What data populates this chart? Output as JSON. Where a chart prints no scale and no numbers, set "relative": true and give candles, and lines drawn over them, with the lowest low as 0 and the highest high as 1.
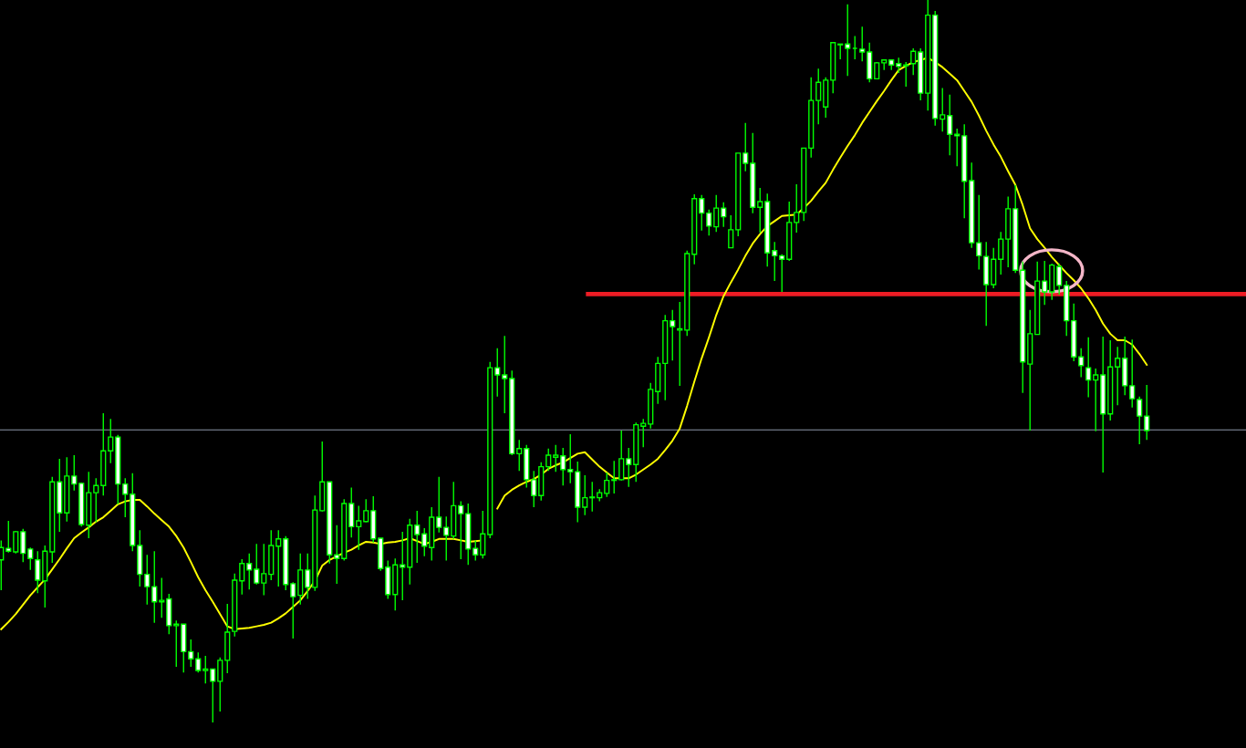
{
  "chart_data": {
    "type": "candlestick",
    "relative": true,
    "color": "#00ff00",
    "legend": false,
    "categories": [
      null,
      null,
      null,
      null,
      null,
      null,
      null,
      null,
      null,
      null,
      null,
      null,
      null,
      null,
      null,
      null,
      null,
      null,
      null,
      null,
      null,
      null,
      null,
      null,
      null,
      null,
      null,
      null,
      null,
      null,
      null,
      null,
      null,
      null,
      null,
      null,
      null,
      null,
      null,
      null,
      null,
      null,
      null,
      null,
      null,
      null,
      null,
      null,
      null,
      null,
      null,
      null,
      null,
      null,
      null,
      null,
      null,
      null,
      null,
      null,
      null,
      null,
      null,
      null,
      null,
      null,
      null,
      null,
      null,
      null,
      null,
      null,
      null,
      null,
      null,
      null,
      null,
      null,
      null,
      null,
      null,
      null,
      null,
      null,
      null,
      null,
      null,
      null,
      null,
      null,
      null,
      null,
      null,
      null,
      null,
      null,
      null,
      null,
      null,
      null,
      null,
      null,
      null,
      null,
      null,
      null,
      null,
      null,
      null,
      null,
      null,
      null,
      null,
      null,
      null,
      null,
      null,
      null,
      null,
      null,
      null,
      null,
      null,
      null,
      null,
      null,
      null,
      null,
      null,
      null,
      null,
      null,
      null,
      null,
      null,
      null,
      null,
      null,
      null,
      null,
      null,
      null,
      null,
      null,
      null,
      null,
      null,
      null,
      null,
      null,
      null,
      null,
      null,
      null,
      null,
      null,
      null,
      null
    ],
    "ohlc": [
      [
        0.225,
        0.252,
        0.183,
        0.242
      ],
      [
        0.241,
        0.279,
        0.235,
        0.237
      ],
      [
        0.236,
        0.265,
        0.234,
        0.264
      ],
      [
        0.264,
        0.268,
        0.222,
        0.234
      ],
      [
        0.24,
        0.242,
        0.211,
        0.227
      ],
      [
        0.225,
        0.237,
        0.179,
        0.197
      ],
      [
        0.196,
        0.245,
        0.159,
        0.237
      ],
      [
        0.236,
        0.34,
        0.221,
        0.333
      ],
      [
        0.333,
        0.365,
        0.264,
        0.29
      ],
      [
        0.29,
        0.367,
        0.278,
        0.341
      ],
      [
        0.341,
        0.37,
        0.321,
        0.33
      ],
      [
        0.331,
        0.332,
        0.271,
        0.274
      ],
      [
        0.273,
        0.347,
        0.255,
        0.318
      ],
      [
        0.318,
        0.338,
        0.277,
        0.328
      ],
      [
        0.328,
        0.428,
        0.314,
        0.376
      ],
      [
        0.376,
        0.42,
        0.359,
        0.395
      ],
      [
        0.395,
        0.398,
        0.302,
        0.33
      ],
      [
        0.33,
        0.338,
        0.284,
        0.316
      ],
      [
        0.316,
        0.345,
        0.237,
        0.245
      ],
      [
        0.245,
        0.266,
        0.188,
        0.205
      ],
      [
        0.205,
        0.232,
        0.163,
        0.188
      ],
      [
        0.188,
        0.237,
        0.138,
        0.167
      ],
      [
        0.167,
        0.2,
        0.145,
        0.169
      ],
      [
        0.171,
        0.178,
        0.122,
        0.134
      ],
      [
        0.134,
        0.141,
        0.077,
        0.136
      ],
      [
        0.136,
        0.136,
        0.069,
        0.098
      ],
      [
        0.098,
        0.115,
        0.077,
        0.088
      ],
      [
        0.088,
        0.097,
        0.069,
        0.072
      ],
      [
        0.072,
        0.092,
        0.054,
        0.074
      ],
      [
        0.074,
        0.074,
        0.0,
        0.057
      ],
      [
        0.057,
        0.09,
        0.015,
        0.086
      ],
      [
        0.086,
        0.164,
        0.068,
        0.125
      ],
      [
        0.126,
        0.206,
        0.119,
        0.197
      ],
      [
        0.196,
        0.226,
        0.177,
        0.22
      ],
      [
        0.22,
        0.234,
        0.184,
        0.211
      ],
      [
        0.212,
        0.247,
        0.191,
        0.193
      ],
      [
        0.193,
        0.247,
        0.176,
        0.206
      ],
      [
        0.205,
        0.266,
        0.197,
        0.245
      ],
      [
        0.244,
        0.266,
        0.188,
        0.254
      ],
      [
        0.254,
        0.258,
        0.183,
        0.191
      ],
      [
        0.192,
        0.194,
        0.116,
        0.174
      ],
      [
        0.176,
        0.234,
        0.163,
        0.211
      ],
      [
        0.211,
        0.234,
        0.171,
        0.187
      ],
      [
        0.187,
        0.314,
        0.182,
        0.294
      ],
      [
        0.293,
        0.389,
        0.292,
        0.333
      ],
      [
        0.333,
        0.333,
        0.22,
        0.232
      ],
      [
        0.232,
        0.273,
        0.192,
        0.227
      ],
      [
        0.227,
        0.309,
        0.224,
        0.303
      ],
      [
        0.303,
        0.325,
        0.256,
        0.271
      ],
      [
        0.271,
        0.3,
        0.239,
        0.279
      ],
      [
        0.278,
        0.309,
        0.277,
        0.293
      ],
      [
        0.293,
        0.313,
        0.249,
        0.254
      ],
      [
        0.255,
        0.255,
        0.21,
        0.213
      ],
      [
        0.215,
        0.224,
        0.171,
        0.177
      ],
      [
        0.177,
        0.227,
        0.155,
        0.218
      ],
      [
        0.218,
        0.264,
        0.169,
        0.215
      ],
      [
        0.215,
        0.282,
        0.191,
        0.273
      ],
      [
        0.273,
        0.293,
        0.221,
        0.26
      ],
      [
        0.261,
        0.269,
        0.23,
        0.244
      ],
      [
        0.242,
        0.298,
        0.224,
        0.284
      ],
      [
        0.284,
        0.34,
        0.263,
        0.27
      ],
      [
        0.27,
        0.285,
        0.224,
        0.259
      ],
      [
        0.258,
        0.333,
        0.254,
        0.3
      ],
      [
        0.3,
        0.306,
        0.226,
        0.289
      ],
      [
        0.289,
        0.303,
        0.218,
        0.24
      ],
      [
        0.241,
        0.252,
        0.224,
        0.232
      ],
      [
        0.232,
        0.293,
        0.227,
        0.261
      ],
      [
        0.26,
        0.499,
        0.255,
        0.491
      ],
      [
        0.491,
        0.518,
        0.451,
        0.481
      ],
      [
        0.481,
        0.535,
        0.428,
        0.476
      ],
      [
        0.476,
        0.487,
        0.37,
        0.372
      ],
      [
        0.372,
        0.391,
        0.348,
        0.379
      ],
      [
        0.379,
        0.384,
        0.325,
        0.336
      ],
      [
        0.336,
        0.348,
        0.298,
        0.314
      ],
      [
        0.314,
        0.36,
        0.307,
        0.354
      ],
      [
        0.354,
        0.379,
        0.348,
        0.37
      ],
      [
        0.367,
        0.384,
        0.347,
        0.37
      ],
      [
        0.369,
        0.38,
        0.328,
        0.35
      ],
      [
        0.35,
        0.399,
        0.331,
        0.347
      ],
      [
        0.347,
        0.361,
        0.277,
        0.298
      ],
      [
        0.298,
        0.342,
        0.287,
        0.311
      ],
      [
        0.311,
        0.333,
        0.292,
        0.312
      ],
      [
        0.311,
        0.323,
        0.306,
        0.318
      ],
      [
        0.317,
        0.346,
        0.312,
        0.335
      ],
      [
        0.335,
        0.362,
        0.317,
        0.336
      ],
      [
        0.336,
        0.404,
        0.335,
        0.365
      ],
      [
        0.365,
        0.38,
        0.326,
        0.357
      ],
      [
        0.357,
        0.415,
        0.333,
        0.412
      ],
      [
        0.41,
        0.42,
        0.381,
        0.414
      ],
      [
        0.413,
        0.47,
        0.407,
        0.461
      ],
      [
        0.458,
        0.506,
        0.441,
        0.497
      ],
      [
        0.497,
        0.564,
        0.446,
        0.556
      ],
      [
        0.556,
        0.571,
        0.501,
        0.548
      ],
      [
        0.543,
        0.582,
        0.466,
        0.545
      ],
      [
        0.543,
        0.653,
        0.535,
        0.649
      ],
      [
        0.648,
        0.731,
        0.634,
        0.725
      ],
      [
        0.725,
        0.73,
        0.681,
        0.705
      ],
      [
        0.705,
        0.71,
        0.674,
        0.687
      ],
      [
        0.686,
        0.73,
        0.679,
        0.712
      ],
      [
        0.712,
        0.72,
        0.686,
        0.7
      ],
      [
        0.657,
        0.702,
        0.657,
        0.682
      ],
      [
        0.682,
        0.788,
        0.673,
        0.788
      ],
      [
        0.788,
        0.83,
        0.763,
        0.774
      ],
      [
        0.774,
        0.816,
        0.705,
        0.713
      ],
      [
        0.713,
        0.74,
        0.678,
        0.721
      ],
      [
        0.721,
        0.732,
        0.631,
        0.65
      ],
      [
        0.653,
        0.665,
        0.611,
        0.646
      ],
      [
        0.646,
        0.648,
        0.596,
        0.641
      ],
      [
        0.641,
        0.721,
        0.639,
        0.692
      ],
      [
        0.692,
        0.745,
        0.678,
        0.706
      ],
      [
        0.706,
        0.795,
        0.694,
        0.795
      ],
      [
        0.795,
        0.893,
        0.782,
        0.861
      ],
      [
        0.861,
        0.905,
        0.828,
        0.886
      ],
      [
        0.852,
        0.893,
        0.837,
        0.889
      ],
      [
        0.889,
        0.941,
        0.871,
        0.941
      ],
      [
        0.938,
        0.939,
        0.918,
        0.939
      ],
      [
        0.939,
        0.994,
        0.895,
        0.933
      ],
      [
        0.933,
        0.95,
        0.918,
        0.933
      ],
      [
        0.932,
        0.963,
        0.915,
        0.928
      ],
      [
        0.928,
        0.941,
        0.886,
        0.891
      ],
      [
        0.891,
        0.914,
        0.891,
        0.913
      ],
      [
        0.913,
        0.918,
        0.903,
        0.917
      ],
      [
        0.917,
        0.917,
        0.903,
        0.91
      ],
      [
        0.912,
        0.92,
        0.899,
        0.908
      ],
      [
        0.909,
        0.914,
        0.88,
        0.91
      ],
      [
        0.912,
        0.933,
        0.896,
        0.929
      ],
      [
        0.928,
        0.933,
        0.861,
        0.871
      ],
      [
        0.871,
        1.0,
        0.847,
        0.979
      ],
      [
        0.979,
        0.985,
        0.826,
        0.836
      ],
      [
        0.835,
        0.878,
        0.818,
        0.841
      ],
      [
        0.84,
        0.869,
        0.785,
        0.814
      ],
      [
        0.814,
        0.822,
        0.77,
        0.812
      ],
      [
        0.812,
        0.828,
        0.698,
        0.749
      ],
      [
        0.75,
        0.775,
        0.657,
        0.664
      ],
      [
        0.664,
        0.73,
        0.627,
        0.646
      ],
      [
        0.645,
        0.665,
        0.549,
        0.606
      ],
      [
        0.606,
        0.657,
        0.601,
        0.641
      ],
      [
        0.641,
        0.679,
        0.62,
        0.669
      ],
      [
        0.669,
        0.728,
        0.63,
        0.711
      ],
      [
        0.711,
        0.744,
        0.622,
        0.626
      ],
      [
        0.626,
        0.638,
        0.456,
        0.499
      ],
      [
        0.496,
        0.571,
        0.404,
        0.538
      ],
      [
        0.537,
        0.638,
        0.537,
        0.611
      ],
      [
        0.611,
        0.639,
        0.578,
        0.596
      ],
      [
        0.596,
        0.635,
        0.585,
        0.633
      ],
      [
        0.631,
        0.635,
        0.592,
        0.605
      ],
      [
        0.605,
        0.611,
        0.535,
        0.556
      ],
      [
        0.556,
        0.58,
        0.5,
        0.506
      ],
      [
        0.506,
        0.518,
        0.478,
        0.494
      ],
      [
        0.491,
        0.533,
        0.45,
        0.474
      ],
      [
        0.474,
        0.49,
        0.403,
        0.481
      ],
      [
        0.481,
        0.534,
        0.346,
        0.427
      ],
      [
        0.427,
        0.529,
        0.418,
        0.492
      ],
      [
        0.492,
        0.52,
        0.439,
        0.504
      ],
      [
        0.504,
        0.534,
        0.453,
        0.466
      ],
      [
        0.466,
        0.53,
        0.436,
        0.448
      ],
      [
        0.447,
        0.451,
        0.385,
        0.424
      ],
      [
        0.424,
        0.467,
        0.391,
        0.404
      ]
    ],
    "series": [
      {
        "type": "line",
        "color": "#ffff00",
        "values": [
          0.129,
          0.139,
          0.15,
          0.163,
          0.176,
          0.187,
          0.198,
          0.212,
          0.226,
          0.241,
          0.255,
          0.263,
          0.27,
          0.278,
          0.284,
          0.293,
          0.302,
          0.306,
          0.308,
          0.308,
          0.299,
          0.289,
          0.28,
          0.271,
          0.258,
          0.242,
          0.222,
          0.201,
          0.183,
          0.167,
          0.15,
          0.133,
          0.129,
          0.13,
          0.131,
          0.133,
          0.135,
          0.138,
          0.144,
          0.151,
          0.16,
          0.169,
          0.182,
          0.196,
          0.217,
          0.225,
          0.23,
          0.235,
          0.239,
          0.245,
          0.25,
          0.249,
          0.247,
          0.249,
          0.25,
          0.252,
          0.255,
          0.251,
          0.247,
          0.25,
          0.254,
          0.254,
          0.254,
          0.252,
          0.25,
          0.251,
          0.252,
          null,
          0.296,
          0.314,
          0.322,
          0.328,
          0.333,
          0.337,
          0.343,
          0.351,
          0.356,
          0.36,
          0.366,
          0.372,
          0.374,
          0.364,
          0.354,
          0.346,
          0.338,
          0.338,
          0.338,
          0.343,
          0.35,
          0.357,
          0.365,
          0.377,
          0.39,
          0.407,
          0.438,
          0.472,
          0.504,
          0.533,
          0.564,
          0.59,
          0.609,
          0.627,
          0.646,
          0.663,
          0.676,
          0.687,
          0.694,
          0.701,
          0.702,
          0.703,
          0.712,
          0.722,
          0.735,
          0.747,
          0.765,
          0.782,
          0.798,
          0.813,
          0.83,
          0.845,
          0.86,
          0.874,
          0.889,
          0.903,
          0.909,
          0.914,
          0.917,
          0.92,
          0.914,
          0.907,
          0.898,
          0.889,
          0.874,
          0.859,
          0.84,
          0.819,
          0.8,
          0.783,
          0.763,
          0.744,
          0.716,
          0.684,
          0.669,
          0.657,
          0.644,
          0.633,
          0.622,
          0.612,
          0.601,
          0.587,
          0.571,
          0.552,
          0.538,
          0.529,
          0.529,
          0.523,
          0.51,
          0.495
        ]
      }
    ],
    "ref_lines": [
      {
        "axis": "y",
        "value": 0.593,
        "color": "#ee1c24",
        "line_style": "solid"
      },
      {
        "axis": "y",
        "value": 0.405,
        "color": "#8c96a8",
        "line_style": "solid"
      }
    ]
  }
}
